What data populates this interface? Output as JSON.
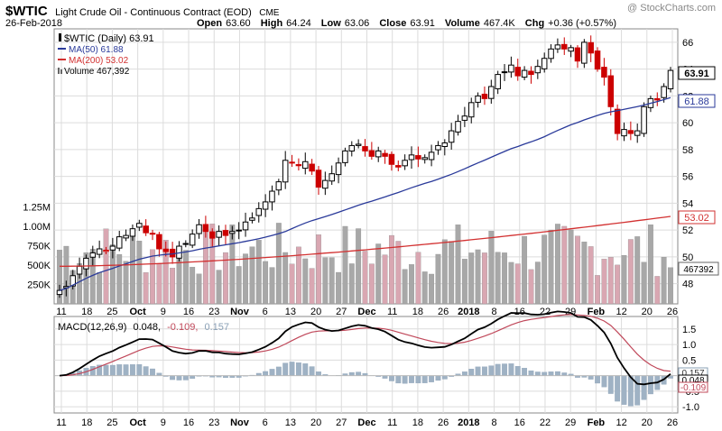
{
  "header": {
    "symbol": "$WTIC",
    "name": "Light Crude Oil - Continuous Contract (EOD)",
    "exchange": "CME",
    "date": "26-Feb-2018",
    "watermark": "@ StockCharts.com",
    "open_label": "Open",
    "open": "63.60",
    "high_label": "High",
    "high": "64.24",
    "low_label": "Low",
    "low": "63.06",
    "close_label": "Close",
    "close": "63.91",
    "volume_label": "Volume",
    "volume": "467.4K",
    "chg_label": "Chg",
    "chg": "+0.36 (+0.57%)"
  },
  "legend": {
    "main": "$WTIC (Daily) 63.91",
    "ma50": "MA(50) 61.88",
    "ma200": "MA(200) 53.02",
    "volume": "Volume 467,392"
  },
  "macd_legend": {
    "label": "MACD(12,26,9)",
    "macd": "0.048,",
    "signal": "-0.109,",
    "hist": "0.157"
  },
  "price_axis": {
    "ticks": [
      "66",
      "64",
      "62",
      "60",
      "58",
      "56",
      "54",
      "52",
      "50",
      "48"
    ],
    "last_close": "63.91",
    "ma50": "61.88",
    "ma200": "53.02",
    "volume_last": "467392"
  },
  "volume_axis": {
    "ticks": [
      "1.25M",
      "1.00M",
      "750K",
      "500K",
      "250K"
    ]
  },
  "macd_axis": {
    "ticks": [
      "1.5",
      "1.0",
      "0.5",
      "-0.5",
      "-1.0"
    ],
    "badges": [
      "0.157",
      "0.048",
      "-0.109"
    ]
  },
  "date_axis": {
    "labels": [
      "11",
      "18",
      "25",
      "Oct",
      "9",
      "16",
      "23",
      "Nov",
      "6",
      "13",
      "20",
      "27",
      "Dec",
      "11",
      "18",
      "26",
      "2018",
      "8",
      "16",
      "22",
      "29",
      "Feb",
      "12",
      "20",
      "26"
    ]
  },
  "colors": {
    "up": "#000000",
    "down": "#cc0000",
    "ma50": "#2a3a9a",
    "ma200": "#d23030",
    "vol_up": "#a8a8a8",
    "vol_down": "#d9a7b2",
    "macd": "#000000",
    "signal": "#c0485a",
    "hist": "#9fb2c4",
    "grid": "#dcdcdc",
    "frame": "#888888"
  },
  "chart_data": {
    "type": "candlestick",
    "date_range": [
      "2017-09-07",
      "2018-02-26"
    ],
    "ylim": [
      46.5,
      67
    ],
    "price_ticks": [
      48,
      50,
      52,
      54,
      56,
      58,
      60,
      62,
      64,
      66
    ],
    "closes": [
      47.5,
      47.8,
      48.6,
      49.3,
      49.9,
      50.3,
      50.6,
      50.5,
      50.8,
      51.5,
      51.6,
      52.1,
      52.5,
      51.8,
      51.7,
      50.6,
      50.4,
      50.0,
      50.8,
      51.0,
      51.7,
      52.4,
      51.9,
      51.4,
      51.9,
      51.6,
      51.9,
      52.0,
      52.6,
      52.9,
      53.6,
      54.1,
      54.9,
      55.6,
      57.2,
      57.0,
      56.8,
      57.1,
      56.4,
      55.2,
      55.7,
      56.2,
      57.0,
      57.9,
      58.3,
      58.4,
      57.9,
      57.5,
      57.9,
      57.5,
      56.9,
      56.7,
      57.2,
      57.6,
      57.3,
      57.4,
      57.8,
      58.3,
      58.5,
      59.4,
      60.1,
      60.5,
      61.5,
      62.0,
      61.8,
      62.7,
      63.6,
      63.8,
      64.3,
      63.5,
      63.9,
      63.6,
      64.2,
      64.8,
      65.5,
      65.8,
      65.5,
      65.6,
      64.6,
      66.0,
      65.2,
      64.0,
      63.4,
      61.2,
      59.2,
      59.5,
      59.2,
      59.4,
      61.2,
      61.8,
      61.7,
      62.7,
      63.9
    ],
    "ma50_endpoints": [
      47.5,
      61.88
    ],
    "ma200_endpoints": [
      49.3,
      53.02
    ],
    "volume_range": [
      200000,
      1250000
    ],
    "volume_last": 467392,
    "macd": {
      "params": "12,26,9",
      "macd": 0.048,
      "signal": -0.109,
      "histogram": 0.157,
      "ylim": [
        -1.2,
        1.9
      ],
      "ticks": [
        1.5,
        1.0,
        0.5,
        -0.5,
        -1.0
      ]
    }
  }
}
